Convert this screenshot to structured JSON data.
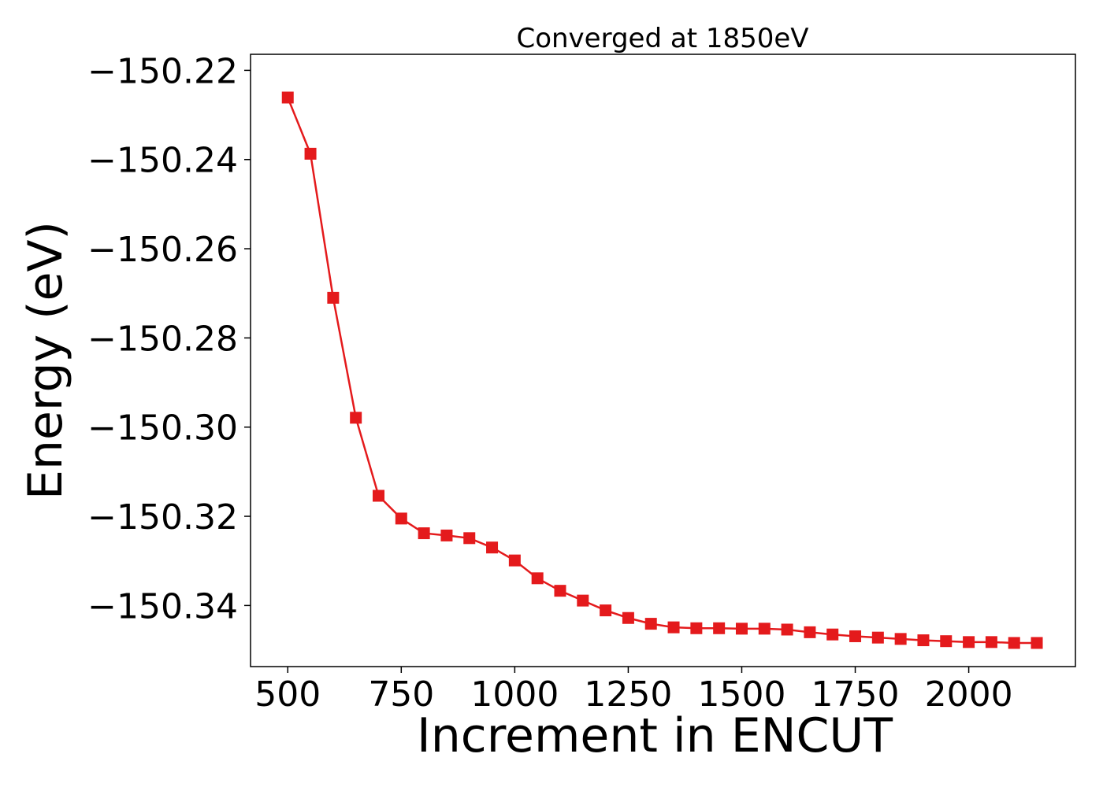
{
  "chart_data": {
    "type": "line",
    "title": "Converged at 1850eV",
    "xlabel": "Increment in ENCUT",
    "ylabel": "Energy (eV)",
    "xlim": [
      418,
      2235
    ],
    "ylim": [
      -150.3537,
      -150.2164
    ],
    "x_ticks": [
      500,
      750,
      1000,
      1250,
      1500,
      1750,
      2000
    ],
    "x_tick_labels": [
      "500",
      "750",
      "1000",
      "1250",
      "1500",
      "1750",
      "2000"
    ],
    "y_ticks": [
      -150.22,
      -150.24,
      -150.26,
      -150.28,
      -150.3,
      -150.32,
      -150.34
    ],
    "y_tick_labels": [
      "−150.22",
      "−150.24",
      "−150.26",
      "−150.28",
      "−150.30",
      "−150.32",
      "−150.34"
    ],
    "grid": false,
    "legend": "none",
    "series": [
      {
        "color": "#e41a1c",
        "marker": "square",
        "x": [
          500,
          550,
          600,
          650,
          700,
          750,
          800,
          850,
          900,
          950,
          1000,
          1050,
          1100,
          1150,
          1200,
          1250,
          1300,
          1350,
          1400,
          1450,
          1500,
          1550,
          1600,
          1650,
          1700,
          1750,
          1800,
          1850,
          1900,
          1950,
          2000,
          2050,
          2100,
          2150
        ],
        "y": [
          -150.2261,
          -150.2387,
          -150.271,
          -150.2979,
          -150.3154,
          -150.3205,
          -150.3238,
          -150.3243,
          -150.3249,
          -150.327,
          -150.3299,
          -150.3339,
          -150.3367,
          -150.3389,
          -150.3411,
          -150.3428,
          -150.3441,
          -150.3449,
          -150.3451,
          -150.3451,
          -150.3452,
          -150.3452,
          -150.3454,
          -150.346,
          -150.3465,
          -150.3469,
          -150.3472,
          -150.3475,
          -150.3478,
          -150.348,
          -150.3482,
          -150.3482,
          -150.3484,
          -150.3484
        ]
      }
    ]
  }
}
